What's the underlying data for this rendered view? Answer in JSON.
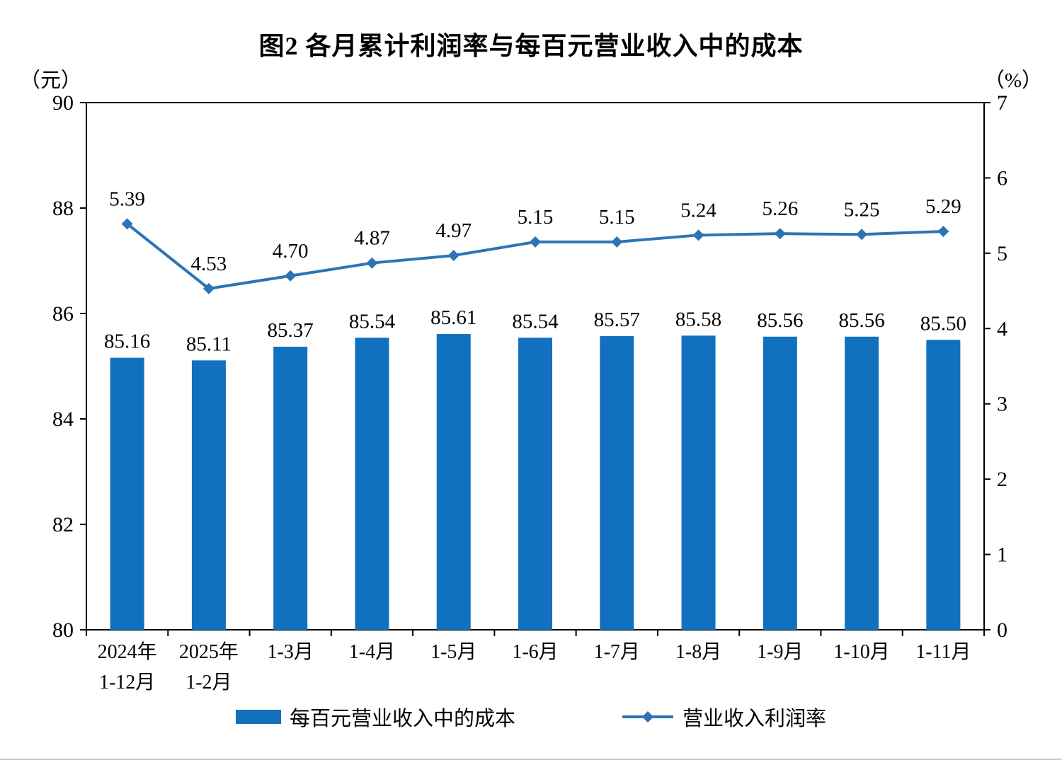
{
  "title": "图2  各月累计利润率与每百元营业收入中的成本",
  "left_axis_unit": "（元）",
  "right_axis_unit": "（%）",
  "legend": {
    "bars_label": "每百元营业收入中的成本",
    "line_label": "营业收入利润率"
  },
  "colors": {
    "bar": "#1171BE",
    "line": "#2E74B5"
  },
  "chart_data": {
    "type": "bar",
    "subtype": "bar+line dual axis",
    "title": "图2  各月累计利润率与每百元营业收入中的成本",
    "categories": [
      [
        "2024年",
        "1-12月"
      ],
      [
        "2025年",
        "1-2月"
      ],
      [
        "1-3月"
      ],
      [
        "1-4月"
      ],
      [
        "1-5月"
      ],
      [
        "1-6月"
      ],
      [
        "1-7月"
      ],
      [
        "1-8月"
      ],
      [
        "1-9月"
      ],
      [
        "1-10月"
      ],
      [
        "1-11月"
      ]
    ],
    "series": [
      {
        "name": "每百元营业收入中的成本",
        "type": "bar",
        "axis": "left",
        "values": [
          85.16,
          85.11,
          85.37,
          85.54,
          85.61,
          85.54,
          85.57,
          85.58,
          85.56,
          85.56,
          85.5
        ]
      },
      {
        "name": "营业收入利润率",
        "type": "line",
        "axis": "right",
        "values": [
          5.39,
          4.53,
          4.7,
          4.87,
          4.97,
          5.15,
          5.15,
          5.24,
          5.26,
          5.25,
          5.29
        ]
      }
    ],
    "left_axis": {
      "unit": "元",
      "min": 80,
      "max": 90,
      "ticks": [
        80,
        82,
        84,
        86,
        88,
        90
      ]
    },
    "right_axis": {
      "unit": "%",
      "min": 0,
      "max": 7,
      "ticks": [
        0,
        1,
        2,
        3,
        4,
        5,
        6,
        7
      ]
    },
    "grid": false,
    "legend_position": "bottom",
    "data_labels": true
  }
}
